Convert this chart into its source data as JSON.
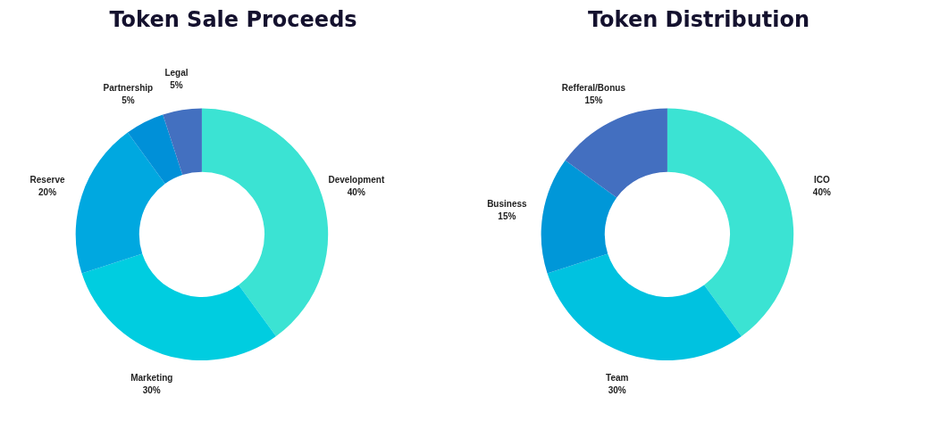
{
  "chart_data": [
    {
      "type": "donut",
      "title": "Token Sale Proceeds",
      "categories": [
        "Development",
        "Marketing",
        "Reserve",
        "Partnership",
        "Legal"
      ],
      "values": [
        40,
        30,
        20,
        5,
        5
      ],
      "colors": [
        "#3be3d3",
        "#00cde0",
        "#00a8e0",
        "#0090d8",
        "#4370c0"
      ],
      "value_labels": [
        "40%",
        "30%",
        "20%",
        "5%",
        "5%"
      ]
    },
    {
      "type": "donut",
      "title": "Token Distribution",
      "categories": [
        "ICO",
        "Team",
        "Business",
        "Refferal/Bonus"
      ],
      "values": [
        40,
        30,
        15,
        15
      ],
      "colors": [
        "#3be3d3",
        "#00c2e0",
        "#0097d8",
        "#436fc0"
      ],
      "value_labels": [
        "40%",
        "30%",
        "15%",
        "15%"
      ]
    }
  ]
}
